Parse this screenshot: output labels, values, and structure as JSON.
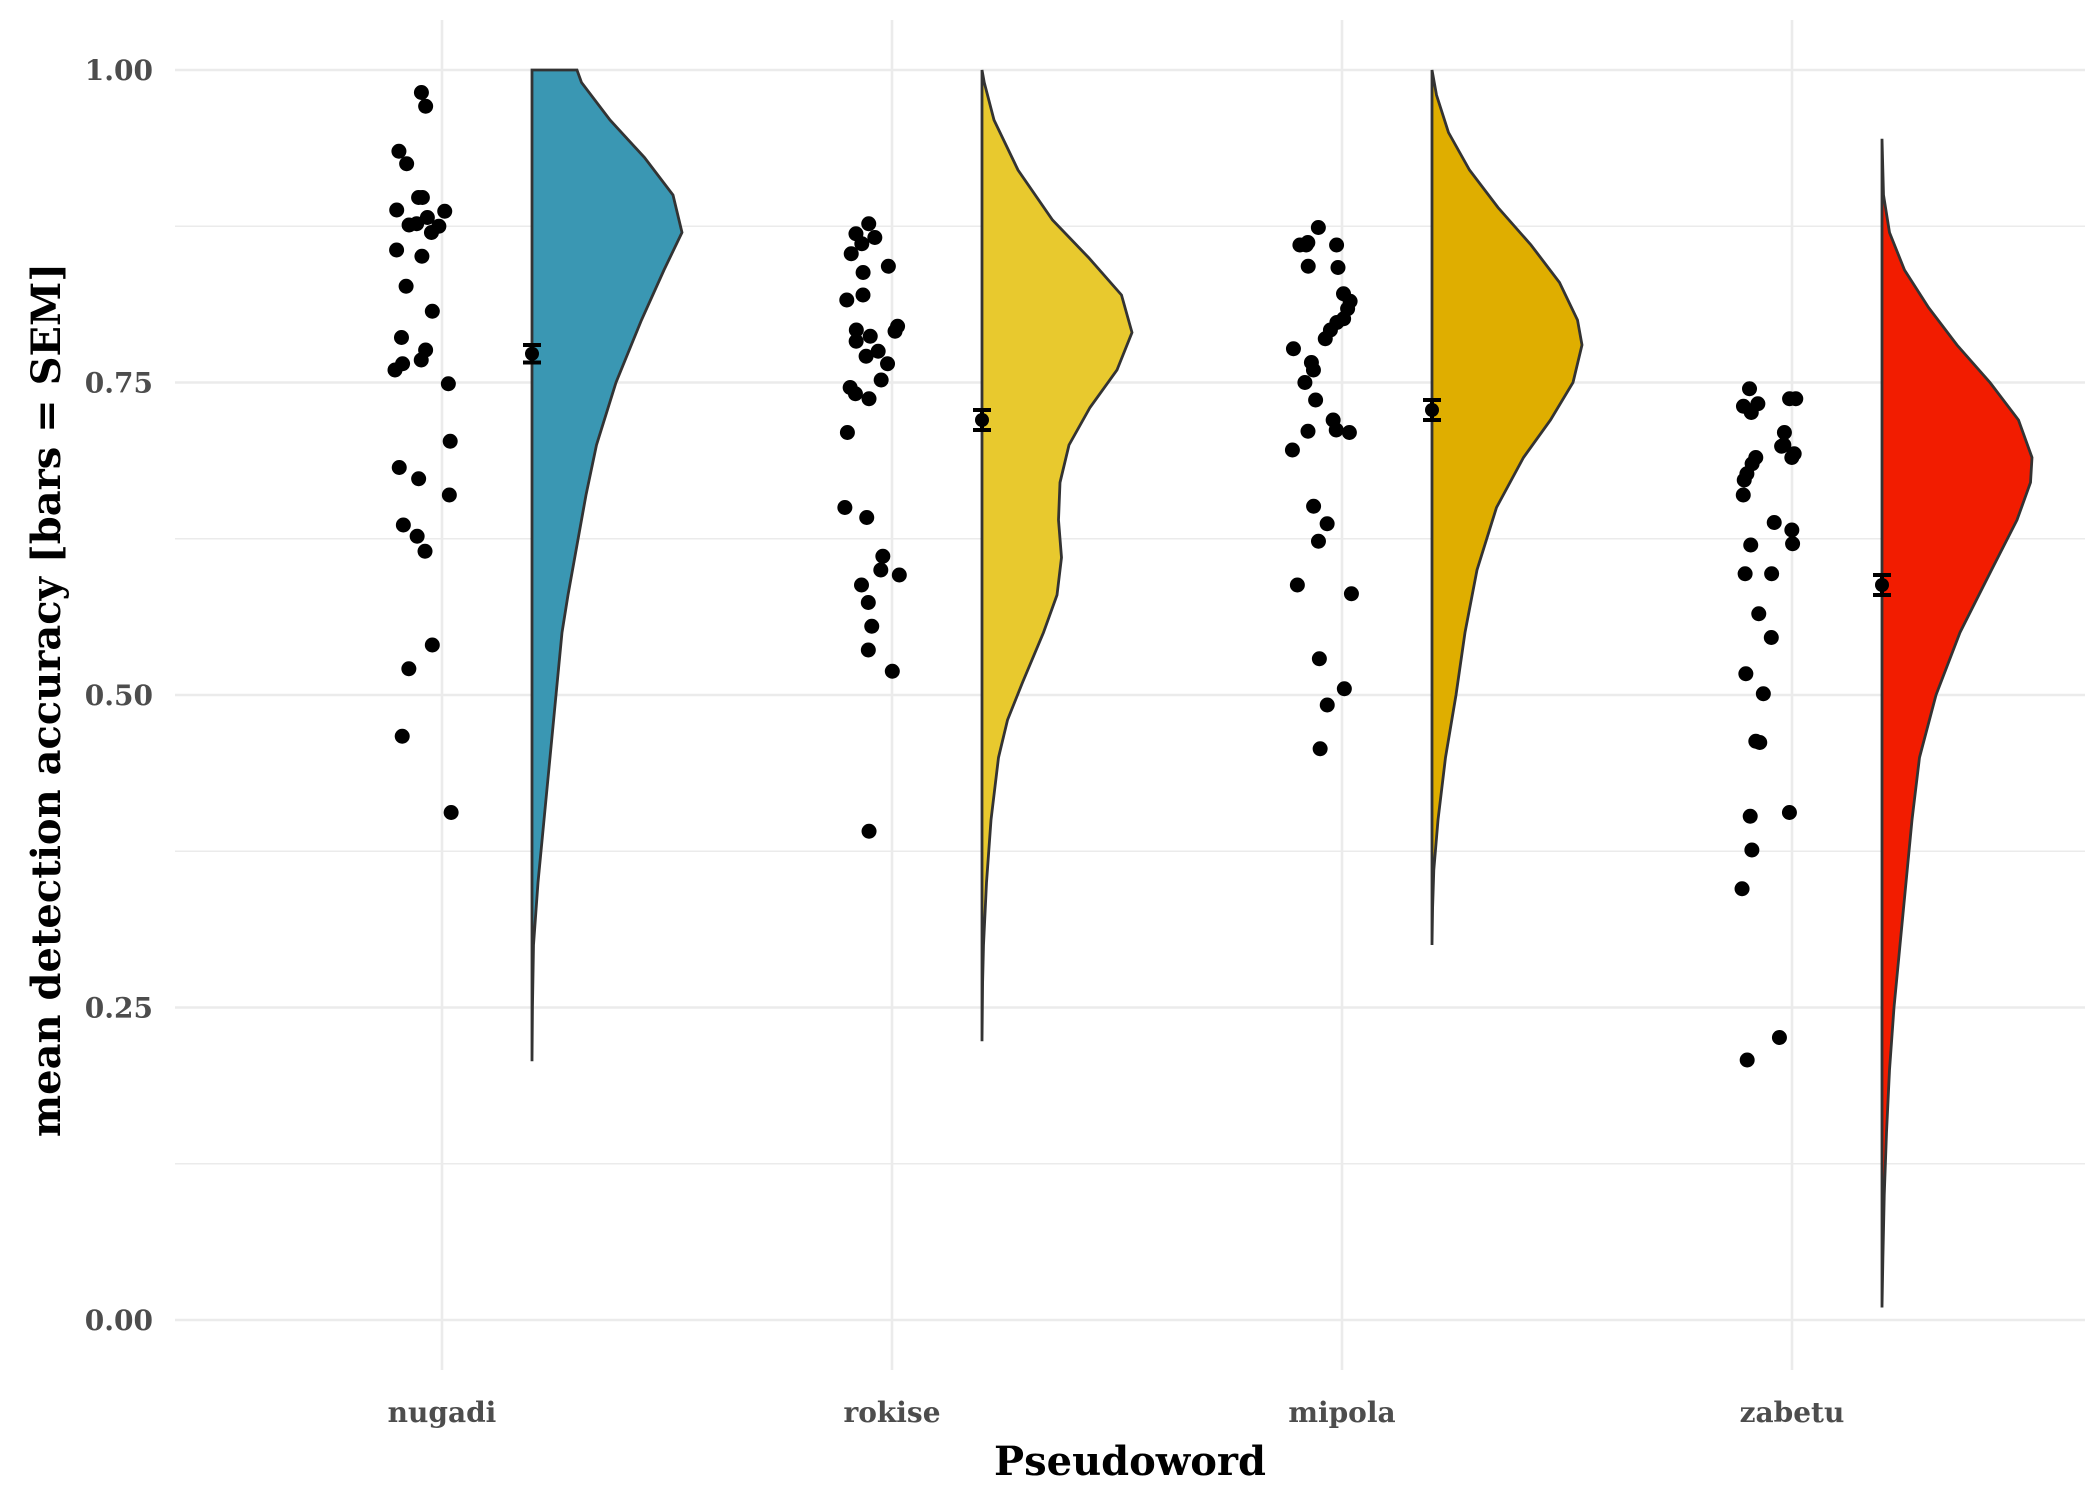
{
  "chart_data": {
    "type": "raincloud",
    "xlabel": "Pseudoword",
    "ylabel": "mean detection accuracy [bars = SEM]",
    "ylim": [
      -0.04,
      1.04
    ],
    "yticks": [
      0.0,
      0.25,
      0.5,
      0.75,
      1.0
    ],
    "ytick_labels": [
      "0.00",
      "0.25",
      "0.50",
      "0.75",
      "1.00"
    ],
    "categories": [
      "nugadi",
      "rokise",
      "mipola",
      "zabetu"
    ],
    "grid": true,
    "legend": "none",
    "series": [
      {
        "name": "nugadi",
        "color": "#3a97b3",
        "mean": 0.773,
        "sem": 0.007,
        "density_range": [
          0.207,
          1.0
        ],
        "density": [
          [
            0.207,
            0.0
          ],
          [
            0.25,
            0.003
          ],
          [
            0.3,
            0.01
          ],
          [
            0.35,
            0.04
          ],
          [
            0.4,
            0.08
          ],
          [
            0.45,
            0.12
          ],
          [
            0.5,
            0.16
          ],
          [
            0.55,
            0.2
          ],
          [
            0.58,
            0.24
          ],
          [
            0.62,
            0.3
          ],
          [
            0.66,
            0.36
          ],
          [
            0.7,
            0.43
          ],
          [
            0.75,
            0.56
          ],
          [
            0.8,
            0.73
          ],
          [
            0.84,
            0.88
          ],
          [
            0.87,
            1.0
          ],
          [
            0.9,
            0.94
          ],
          [
            0.93,
            0.75
          ],
          [
            0.96,
            0.52
          ],
          [
            0.99,
            0.33
          ],
          [
            1.0,
            0.3
          ]
        ],
        "points": [
          0.982,
          0.971,
          0.935,
          0.925,
          0.898,
          0.898,
          0.888,
          0.887,
          0.882,
          0.877,
          0.876,
          0.875,
          0.87,
          0.856,
          0.851,
          0.827,
          0.807,
          0.786,
          0.776,
          0.768,
          0.765,
          0.76,
          0.749,
          0.703,
          0.682,
          0.673,
          0.66,
          0.636,
          0.627,
          0.615,
          0.54,
          0.521,
          0.467,
          0.406
        ]
      },
      {
        "name": "rokise",
        "color": "#e8c92e",
        "mean": 0.72,
        "sem": 0.008,
        "density_range": [
          0.223,
          1.0
        ],
        "density": [
          [
            0.223,
            0.0
          ],
          [
            0.27,
            0.004
          ],
          [
            0.3,
            0.01
          ],
          [
            0.35,
            0.03
          ],
          [
            0.4,
            0.06
          ],
          [
            0.45,
            0.11
          ],
          [
            0.48,
            0.17
          ],
          [
            0.51,
            0.27
          ],
          [
            0.55,
            0.41
          ],
          [
            0.58,
            0.5
          ],
          [
            0.61,
            0.53
          ],
          [
            0.64,
            0.51
          ],
          [
            0.67,
            0.52
          ],
          [
            0.7,
            0.58
          ],
          [
            0.73,
            0.72
          ],
          [
            0.76,
            0.9
          ],
          [
            0.79,
            1.0
          ],
          [
            0.82,
            0.93
          ],
          [
            0.85,
            0.71
          ],
          [
            0.88,
            0.47
          ],
          [
            0.92,
            0.24
          ],
          [
            0.96,
            0.08
          ],
          [
            0.99,
            0.015
          ],
          [
            1.0,
            0.0
          ]
        ],
        "points": [
          0.877,
          0.869,
          0.866,
          0.861,
          0.853,
          0.843,
          0.838,
          0.82,
          0.816,
          0.795,
          0.792,
          0.791,
          0.787,
          0.783,
          0.775,
          0.771,
          0.765,
          0.752,
          0.746,
          0.741,
          0.737,
          0.71,
          0.65,
          0.642,
          0.611,
          0.6,
          0.596,
          0.588,
          0.574,
          0.555,
          0.536,
          0.519,
          0.391
        ]
      },
      {
        "name": "mipola",
        "color": "#dfae00",
        "mean": 0.728,
        "sem": 0.008,
        "density_range": [
          0.3,
          1.0
        ],
        "density": [
          [
            0.3,
            0.0
          ],
          [
            0.33,
            0.004
          ],
          [
            0.36,
            0.012
          ],
          [
            0.4,
            0.04
          ],
          [
            0.45,
            0.09
          ],
          [
            0.5,
            0.16
          ],
          [
            0.55,
            0.22
          ],
          [
            0.6,
            0.3
          ],
          [
            0.65,
            0.43
          ],
          [
            0.69,
            0.61
          ],
          [
            0.72,
            0.79
          ],
          [
            0.75,
            0.94
          ],
          [
            0.78,
            1.0
          ],
          [
            0.8,
            0.97
          ],
          [
            0.83,
            0.85
          ],
          [
            0.86,
            0.66
          ],
          [
            0.89,
            0.44
          ],
          [
            0.92,
            0.25
          ],
          [
            0.95,
            0.11
          ],
          [
            0.98,
            0.03
          ],
          [
            1.0,
            0.0
          ]
        ],
        "points": [
          0.874,
          0.862,
          0.86,
          0.86,
          0.86,
          0.843,
          0.842,
          0.821,
          0.815,
          0.809,
          0.801,
          0.798,
          0.792,
          0.785,
          0.777,
          0.766,
          0.76,
          0.75,
          0.736,
          0.72,
          0.712,
          0.711,
          0.71,
          0.696,
          0.651,
          0.637,
          0.623,
          0.588,
          0.581,
          0.529,
          0.505,
          0.492,
          0.457
        ]
      },
      {
        "name": "zabetu",
        "color": "#f21c00",
        "mean": 0.588,
        "sem": 0.008,
        "density_range": [
          0.01,
          0.945
        ],
        "density": [
          [
            0.01,
            0.0
          ],
          [
            0.05,
            0.006
          ],
          [
            0.1,
            0.015
          ],
          [
            0.15,
            0.03
          ],
          [
            0.2,
            0.05
          ],
          [
            0.25,
            0.08
          ],
          [
            0.3,
            0.12
          ],
          [
            0.35,
            0.16
          ],
          [
            0.4,
            0.2
          ],
          [
            0.45,
            0.25
          ],
          [
            0.5,
            0.36
          ],
          [
            0.55,
            0.52
          ],
          [
            0.6,
            0.73
          ],
          [
            0.64,
            0.9
          ],
          [
            0.67,
            0.99
          ],
          [
            0.69,
            1.0
          ],
          [
            0.72,
            0.91
          ],
          [
            0.75,
            0.72
          ],
          [
            0.78,
            0.5
          ],
          [
            0.81,
            0.31
          ],
          [
            0.84,
            0.15
          ],
          [
            0.87,
            0.05
          ],
          [
            0.9,
            0.01
          ],
          [
            0.945,
            0.0
          ]
        ],
        "points": [
          0.745,
          0.737,
          0.737,
          0.733,
          0.731,
          0.726,
          0.71,
          0.7,
          0.699,
          0.693,
          0.69,
          0.69,
          0.685,
          0.672,
          0.677,
          0.66,
          0.638,
          0.632,
          0.621,
          0.62,
          0.597,
          0.597,
          0.565,
          0.546,
          0.517,
          0.501,
          0.463,
          0.462,
          0.406,
          0.403,
          0.376,
          0.345,
          0.226,
          0.208
        ]
      }
    ]
  }
}
